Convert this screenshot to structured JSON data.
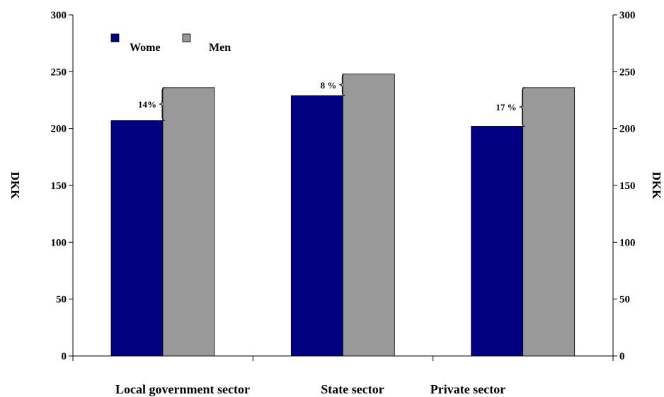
{
  "chart_data": {
    "type": "bar",
    "categories": [
      "Local government sector",
      "State sector",
      "Private sector"
    ],
    "series": [
      {
        "name": "Wome",
        "values": [
          207,
          229,
          202
        ],
        "color": "#000080"
      },
      {
        "name": "Men",
        "values": [
          236,
          248,
          236
        ],
        "color": "#999999"
      }
    ],
    "ylim": [
      0,
      300
    ],
    "yticks": [
      0,
      50,
      100,
      150,
      200,
      250,
      300
    ],
    "ylabel": "DKK",
    "y2label": "DKK",
    "title": "",
    "xlabel": "",
    "grid": false,
    "legend_position": "top-left",
    "annotations": [
      "14%",
      "8 %",
      "17 %"
    ]
  }
}
